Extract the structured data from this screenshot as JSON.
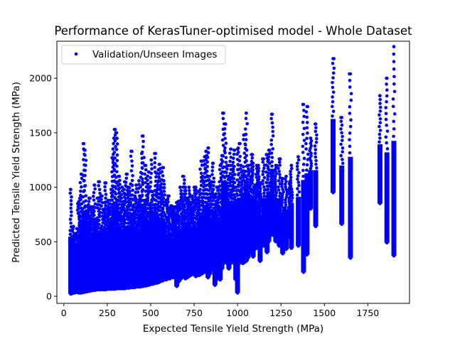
{
  "chart_data": {
    "type": "scatter",
    "title": "Performance of KerasTuner-optimised model - Whole Dataset",
    "xlabel": "Expected Tensile Yield Strength (MPa)",
    "ylabel": "Predicted Tensile Yield Strength (MPa)",
    "xlim": [
      -40,
      1990
    ],
    "ylim": [
      -65,
      2340
    ],
    "xticks": [
      0,
      250,
      500,
      750,
      1000,
      1250,
      1500,
      1750
    ],
    "yticks": [
      0,
      500,
      1000,
      1500,
      2000
    ],
    "grid": false,
    "legend_position": "top-left",
    "series": [
      {
        "name": "Validation/Unseen Images",
        "color": "#0000ff",
        "marker": "dot",
        "columns": [
          [
            40,
            20,
            980
          ],
          [
            48,
            25,
            550
          ],
          [
            55,
            30,
            640
          ],
          [
            62,
            30,
            560
          ],
          [
            70,
            35,
            480
          ],
          [
            78,
            35,
            620
          ],
          [
            85,
            30,
            850
          ],
          [
            92,
            30,
            900
          ],
          [
            100,
            30,
            1120
          ],
          [
            108,
            35,
            800
          ],
          [
            115,
            35,
            1400
          ],
          [
            122,
            40,
            1340
          ],
          [
            130,
            40,
            780
          ],
          [
            138,
            45,
            820
          ],
          [
            145,
            45,
            900
          ],
          [
            152,
            50,
            700
          ],
          [
            160,
            50,
            820
          ],
          [
            168,
            55,
            820
          ],
          [
            175,
            55,
            1020
          ],
          [
            182,
            55,
            700
          ],
          [
            190,
            60,
            690
          ],
          [
            198,
            60,
            900
          ],
          [
            205,
            60,
            1050
          ],
          [
            212,
            60,
            620
          ],
          [
            220,
            60,
            920
          ],
          [
            228,
            60,
            610
          ],
          [
            235,
            60,
            860
          ],
          [
            242,
            60,
            1040
          ],
          [
            250,
            65,
            800
          ],
          [
            258,
            65,
            880
          ],
          [
            265,
            65,
            670
          ],
          [
            272,
            65,
            980
          ],
          [
            280,
            65,
            1270
          ],
          [
            288,
            65,
            1450
          ],
          [
            296,
            65,
            1530
          ],
          [
            304,
            70,
            1500
          ],
          [
            312,
            70,
            1050
          ],
          [
            320,
            70,
            1100
          ],
          [
            328,
            70,
            900
          ],
          [
            336,
            70,
            1000
          ],
          [
            344,
            70,
            870
          ],
          [
            352,
            70,
            1050
          ],
          [
            360,
            75,
            1120
          ],
          [
            368,
            75,
            1000
          ],
          [
            376,
            75,
            950
          ],
          [
            384,
            80,
            1030
          ],
          [
            392,
            80,
            1330
          ],
          [
            400,
            80,
            820
          ],
          [
            408,
            80,
            900
          ],
          [
            416,
            85,
            1020
          ],
          [
            424,
            85,
            860
          ],
          [
            432,
            85,
            1060
          ],
          [
            440,
            85,
            900
          ],
          [
            448,
            90,
            1310
          ],
          [
            456,
            90,
            1470
          ],
          [
            464,
            95,
            880
          ],
          [
            472,
            95,
            1200
          ],
          [
            480,
            100,
            1000
          ],
          [
            488,
            100,
            1140
          ],
          [
            496,
            105,
            850
          ],
          [
            504,
            110,
            1250
          ],
          [
            512,
            110,
            960
          ],
          [
            520,
            115,
            840
          ],
          [
            528,
            120,
            1310
          ],
          [
            536,
            120,
            1130
          ],
          [
            544,
            125,
            1160
          ],
          [
            552,
            130,
            1210
          ],
          [
            560,
            140,
            1000
          ],
          [
            568,
            140,
            1180
          ],
          [
            576,
            150,
            1060
          ],
          [
            590,
            150,
            880
          ],
          [
            600,
            160,
            920
          ],
          [
            610,
            160,
            800
          ],
          [
            620,
            170,
            830
          ],
          [
            630,
            170,
            820
          ],
          [
            640,
            175,
            820
          ],
          [
            650,
            90,
            860
          ],
          [
            660,
            130,
            870
          ],
          [
            670,
            150,
            1000
          ],
          [
            680,
            170,
            940
          ],
          [
            690,
            180,
            1100
          ],
          [
            700,
            160,
            1000
          ],
          [
            710,
            170,
            900
          ],
          [
            720,
            180,
            1000
          ],
          [
            730,
            190,
            860
          ],
          [
            740,
            200,
            920
          ],
          [
            750,
            210,
            1000
          ],
          [
            760,
            180,
            1000
          ],
          [
            770,
            190,
            900
          ],
          [
            780,
            190,
            960
          ],
          [
            790,
            200,
            1240
          ],
          [
            800,
            210,
            1100
          ],
          [
            810,
            220,
            1280
          ],
          [
            820,
            240,
            1330
          ],
          [
            830,
            170,
            1360
          ],
          [
            840,
            200,
            1100
          ],
          [
            850,
            240,
            1050
          ],
          [
            860,
            260,
            1220
          ],
          [
            870,
            100,
            930
          ],
          [
            880,
            150,
            1000
          ],
          [
            890,
            200,
            1000
          ],
          [
            900,
            150,
            1200
          ],
          [
            910,
            250,
            1290
          ],
          [
            920,
            300,
            1680
          ],
          [
            930,
            350,
            1580
          ],
          [
            940,
            300,
            1200
          ],
          [
            950,
            250,
            1100
          ],
          [
            960,
            300,
            1350
          ],
          [
            970,
            350,
            1200
          ],
          [
            980,
            300,
            1340
          ],
          [
            990,
            150,
            1000
          ],
          [
            1000,
            30,
            1350
          ],
          [
            1010,
            300,
            1400
          ],
          [
            1020,
            350,
            1200
          ],
          [
            1030,
            300,
            1150
          ],
          [
            1040,
            310,
            1480
          ],
          [
            1050,
            320,
            1680
          ],
          [
            1060,
            350,
            1200
          ],
          [
            1070,
            400,
            1150
          ],
          [
            1080,
            420,
            1300
          ],
          [
            1090,
            360,
            1220
          ],
          [
            1100,
            430,
            1020
          ],
          [
            1110,
            440,
            1200
          ],
          [
            1120,
            480,
            1200
          ],
          [
            1130,
            320,
            1040
          ],
          [
            1150,
            460,
            1260
          ],
          [
            1170,
            400,
            1300
          ],
          [
            1180,
            500,
            1340
          ],
          [
            1200,
            560,
            1670
          ],
          [
            1220,
            500,
            1200
          ],
          [
            1240,
            460,
            1260
          ],
          [
            1260,
            390,
            1080
          ],
          [
            1280,
            430,
            1100
          ],
          [
            1300,
            540,
            1050
          ],
          [
            1310,
            440,
            1200
          ],
          [
            1350,
            460,
            1280
          ],
          [
            1380,
            220,
            1760
          ],
          [
            1400,
            380,
            1740
          ],
          [
            1420,
            800,
            1450
          ],
          [
            1450,
            640,
            1580
          ],
          [
            1550,
            950,
            2180
          ],
          [
            1600,
            660,
            1640
          ],
          [
            1650,
            350,
            2040
          ],
          [
            1820,
            850,
            1840
          ],
          [
            1860,
            490,
            2000
          ],
          [
            1900,
            370,
            2290
          ]
        ]
      }
    ]
  }
}
